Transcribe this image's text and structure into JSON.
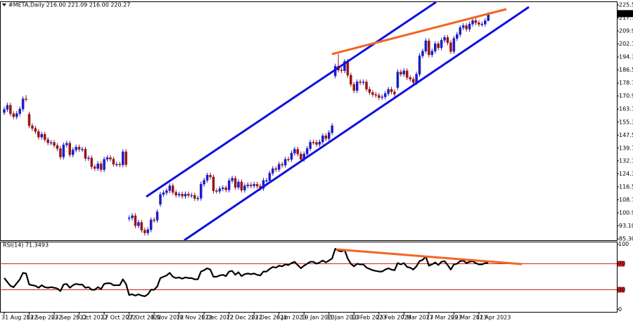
{
  "chart_data": [
    {
      "type": "candlestick",
      "title": "#META,Daily  216.00 221.09 216.00 220.27",
      "up_color": "#1c1cc8",
      "down_color": "#9a1515",
      "categories": [
        "31 Aug 2022",
        null,
        null,
        null,
        null,
        null,
        null,
        null,
        "13 Sep 2022",
        null,
        null,
        null,
        null,
        null,
        null,
        null,
        "23 Sep 2022",
        null,
        null,
        null,
        null,
        null,
        null,
        null,
        "5 Oct 2022",
        null,
        null,
        null,
        null,
        null,
        null,
        null,
        "17 Oct 2022",
        null,
        null,
        null,
        null,
        null,
        null,
        null,
        "27 Oct 2022",
        null,
        null,
        null,
        null,
        null,
        null,
        null,
        "8 Nov 2022",
        null,
        null,
        null,
        null,
        null,
        null,
        null,
        "18 Nov 2022",
        null,
        null,
        null,
        null,
        null,
        null,
        null,
        "1 Dec 2022",
        null,
        null,
        null,
        null,
        null,
        null,
        null,
        "12 Dec 2022",
        null,
        null,
        null,
        null,
        null,
        null,
        null,
        "23 Dec 2022",
        null,
        null,
        null,
        null,
        null,
        null,
        null,
        "6 Jan 2023",
        null,
        null,
        null,
        null,
        null,
        null,
        null,
        "19 Jan 2023",
        null,
        null,
        null,
        null,
        null,
        null,
        null,
        "31 Jan 2023",
        null,
        null,
        null,
        null,
        null,
        null,
        null,
        "10 Feb 2023",
        null,
        null,
        null,
        null,
        null,
        null,
        null,
        "23 Feb 2023",
        null,
        null,
        null,
        null,
        null,
        null,
        null,
        "7 Mar 2023",
        null,
        null,
        null,
        null,
        null,
        null,
        null,
        "17 Mar 2023",
        null,
        null,
        null,
        null,
        null,
        null,
        null,
        "29 Mar 2023",
        null,
        null,
        null,
        null,
        null,
        null,
        null,
        "11 Apr 2023",
        null,
        null,
        null
      ],
      "open": [
        161.0,
        162.9,
        165.4,
        160.3,
        158.5,
        160.4,
        163.1,
        169.2,
        160.0,
        153.1,
        151.5,
        149.6,
        146.3,
        148.0,
        144.8,
        142.9,
        143.1,
        141.3,
        139.4,
        134.4,
        141.6,
        142.6,
        135.7,
        138.6,
        140.3,
        139.0,
        139.1,
        133.5,
        133.8,
        128.5,
        127.5,
        130.3,
        126.8,
        133.0,
        134.0,
        133.1,
        130.0,
        130.0,
        129.7,
        137.5,
        97.5,
        97.9,
        99.2,
        93.2,
        95.2,
        90.5,
        88.9,
        90.8,
        96.7,
        96.5,
        106.0,
        111.9,
        113.0,
        114.2,
        117.1,
        113.2,
        111.5,
        112.1,
        110.9,
        112.2,
        111.4,
        111.4,
        109.5,
        109.7,
        118.1,
        120.4,
        123.5,
        122.4,
        114.1,
        113.9,
        115.3,
        115.9,
        114.7,
        120.2,
        121.6,
        116.2,
        119.4,
        114.5,
        117.1,
        117.7,
        117.1,
        118.0,
        116.9,
        115.6,
        120.3,
        120.3,
        124.7,
        127.4,
        126.9,
        130.0,
        129.5,
        133.0,
        132.9,
        136.7,
        139.0,
        136.2,
        133.0,
        136.2,
        139.4,
        143.2,
        143.1,
        141.9,
        143.4,
        147.1,
        145.4,
        149.0,
        183.0,
        188.8,
        186.5,
        186.1,
        191.6,
        183.4,
        177.9,
        174.2,
        179.4,
        179.0,
        179.3,
        175.0,
        173.0,
        171.8,
        171.3,
        170.0,
        170.4,
        172.4,
        174.9,
        173.4,
        176.0,
        185.3,
        184.0,
        186.0,
        182.0,
        181.0,
        179.0,
        184.0,
        195.0,
        197.8,
        204.0,
        195.6,
        197.8,
        202.2,
        199.8,
        204.3,
        206.0,
        202.8,
        197.6,
        205.4,
        207.8,
        211.9,
        213.1,
        211.0,
        214.0,
        216.1,
        214.8,
        213.9,
        214.0,
        216.0
      ],
      "high": [
        164.4,
        166.9,
        166.9,
        161.8,
        161.9,
        164.6,
        170.7,
        171.5,
        161.5,
        154.6,
        153.0,
        151.1,
        149.5,
        149.5,
        146.3,
        144.6,
        144.6,
        142.8,
        140.9,
        143.1,
        144.1,
        144.1,
        140.1,
        141.8,
        141.8,
        140.6,
        140.6,
        135.3,
        135.3,
        130.0,
        131.8,
        131.8,
        134.5,
        135.5,
        135.5,
        134.6,
        131.5,
        131.5,
        139.0,
        139.0,
        99.4,
        100.7,
        100.7,
        96.7,
        96.7,
        92.0,
        92.3,
        98.2,
        98.2,
        103.0,
        113.4,
        114.5,
        115.7,
        118.6,
        118.6,
        114.7,
        113.6,
        113.6,
        113.7,
        113.7,
        112.9,
        112.9,
        111.2,
        119.6,
        121.9,
        125.0,
        125.0,
        123.9,
        115.6,
        116.8,
        117.4,
        117.4,
        121.7,
        123.1,
        123.1,
        120.9,
        120.9,
        118.6,
        119.2,
        119.2,
        119.5,
        119.5,
        118.4,
        121.8,
        121.8,
        126.2,
        128.9,
        128.9,
        131.5,
        131.5,
        134.5,
        134.5,
        138.2,
        140.5,
        140.5,
        137.7,
        137.7,
        140.9,
        144.7,
        144.7,
        144.6,
        144.9,
        148.6,
        148.6,
        150.5,
        154.6,
        190.3,
        196.0,
        188.0,
        193.1,
        193.1,
        184.9,
        179.4,
        180.9,
        180.9,
        180.8,
        180.8,
        176.5,
        174.5,
        173.3,
        172.8,
        171.9,
        173.9,
        176.4,
        176.4,
        174.9,
        186.8,
        186.8,
        187.5,
        187.5,
        183.5,
        182.5,
        185.5,
        196.5,
        199.3,
        205.5,
        205.5,
        199.3,
        203.7,
        203.7,
        205.8,
        207.5,
        207.5,
        204.3,
        206.9,
        209.3,
        213.4,
        214.6,
        214.6,
        215.5,
        217.6,
        217.6,
        216.3,
        215.5,
        217.5,
        221.09
      ],
      "low": [
        159.5,
        161.4,
        158.8,
        157.0,
        157.0,
        158.9,
        161.6,
        167.5,
        151.6,
        150.0,
        148.1,
        144.8,
        144.8,
        143.3,
        141.4,
        141.4,
        139.8,
        137.9,
        132.9,
        132.9,
        140.1,
        134.2,
        134.2,
        137.1,
        137.5,
        137.5,
        132.0,
        132.0,
        127.0,
        126.0,
        126.0,
        125.3,
        125.3,
        131.5,
        131.6,
        128.5,
        128.5,
        128.2,
        128.2,
        128.3,
        96.0,
        96.4,
        91.7,
        91.7,
        89.0,
        87.4,
        87.4,
        89.3,
        95.0,
        95.0,
        104.5,
        110.4,
        111.5,
        112.7,
        111.7,
        110.0,
        110.0,
        109.4,
        109.4,
        109.9,
        109.9,
        108.0,
        108.0,
        108.2,
        116.6,
        118.9,
        120.9,
        112.6,
        112.4,
        112.4,
        113.8,
        113.2,
        113.2,
        118.7,
        114.7,
        114.7,
        113.0,
        113.0,
        115.6,
        115.6,
        115.6,
        115.4,
        114.1,
        114.1,
        118.8,
        118.8,
        123.2,
        125.4,
        125.4,
        128.0,
        128.0,
        131.4,
        131.4,
        135.2,
        134.7,
        131.5,
        131.5,
        134.7,
        137.9,
        141.6,
        140.4,
        140.4,
        141.9,
        143.9,
        143.9,
        147.5,
        181.5,
        185.0,
        184.6,
        184.6,
        181.9,
        176.4,
        172.7,
        172.7,
        177.5,
        177.5,
        173.5,
        171.5,
        170.3,
        169.8,
        168.5,
        168.5,
        168.9,
        170.9,
        171.9,
        170.5,
        174.5,
        182.5,
        182.5,
        180.5,
        179.5,
        177.5,
        177.5,
        182.5,
        193.5,
        196.3,
        194.1,
        194.1,
        196.3,
        198.3,
        198.3,
        202.8,
        201.3,
        196.1,
        196.1,
        203.9,
        206.3,
        210.4,
        209.5,
        209.5,
        212.5,
        213.3,
        212.4,
        212.4,
        212.5,
        216.0
      ],
      "close": [
        162.9,
        165.4,
        160.3,
        158.5,
        160.4,
        163.1,
        169.2,
        169.0,
        153.1,
        151.5,
        149.6,
        146.3,
        148.0,
        144.8,
        142.9,
        143.1,
        141.3,
        139.4,
        134.4,
        141.6,
        142.6,
        135.7,
        138.6,
        140.3,
        139.0,
        139.1,
        133.5,
        133.8,
        128.5,
        127.5,
        130.3,
        126.8,
        133.0,
        134.0,
        133.1,
        130.0,
        130.0,
        129.7,
        137.5,
        129.8,
        97.9,
        99.2,
        93.2,
        95.2,
        90.5,
        88.9,
        90.8,
        96.7,
        96.5,
        101.5,
        111.9,
        113.0,
        114.2,
        117.1,
        113.2,
        111.5,
        112.1,
        110.9,
        112.2,
        111.4,
        111.4,
        109.5,
        109.7,
        118.1,
        120.4,
        123.5,
        122.4,
        114.1,
        113.9,
        115.3,
        115.9,
        114.7,
        120.2,
        121.6,
        116.2,
        119.4,
        114.5,
        117.1,
        117.7,
        117.1,
        118.0,
        116.9,
        115.6,
        120.3,
        120.3,
        124.7,
        127.4,
        126.9,
        130.0,
        129.5,
        133.0,
        132.9,
        136.7,
        139.0,
        136.2,
        133.0,
        136.2,
        139.4,
        143.2,
        143.1,
        141.9,
        143.4,
        147.1,
        145.4,
        149.0,
        153.1,
        188.8,
        186.5,
        186.1,
        191.6,
        183.4,
        177.9,
        174.2,
        179.4,
        179.0,
        179.3,
        175.0,
        173.0,
        171.8,
        171.3,
        170.0,
        170.4,
        172.4,
        174.9,
        173.4,
        172.0,
        185.3,
        184.0,
        186.0,
        182.0,
        181.0,
        179.0,
        184.0,
        195.0,
        197.8,
        204.0,
        195.6,
        197.8,
        202.2,
        199.8,
        204.3,
        206.0,
        202.8,
        197.6,
        205.4,
        207.8,
        211.9,
        213.1,
        211.0,
        214.0,
        216.1,
        214.8,
        213.9,
        214.0,
        216.0,
        220.27
      ],
      "ylim": [
        84.5,
        227.6
      ],
      "yticks": [
        {
          "value": 225.5,
          "label": "225.50"
        },
        {
          "value": 217.7,
          "label": "217.70"
        },
        {
          "value": 209.9,
          "label": "209.90"
        },
        {
          "value": 202.1,
          "label": "202.10"
        },
        {
          "value": 194.3,
          "label": "194.30"
        },
        {
          "value": 186.5,
          "label": "186.50"
        },
        {
          "value": 178.7,
          "label": "178.70"
        },
        {
          "value": 170.9,
          "label": "170.90"
        },
        {
          "value": 163.1,
          "label": "163.10"
        },
        {
          "value": 155.3,
          "label": "155.30"
        },
        {
          "value": 147.5,
          "label": "147.50"
        },
        {
          "value": 139.7,
          "label": "139.70"
        },
        {
          "value": 132.1,
          "label": "132.10"
        },
        {
          "value": 124.3,
          "label": "124.30"
        },
        {
          "value": 116.5,
          "label": "116.50"
        },
        {
          "value": 108.7,
          "label": "108.70"
        },
        {
          "value": 100.9,
          "label": "100.90"
        },
        {
          "value": 93.1,
          "label": "93.10"
        },
        {
          "value": 85.3,
          "label": "85.30"
        }
      ]
    },
    {
      "type": "line",
      "title": "RSI(14) 71.3493",
      "color": "#000000",
      "level_color": "#d21e1e",
      "values": [
        48,
        42,
        36,
        34,
        40,
        46,
        56,
        55,
        38,
        37,
        36,
        33,
        37,
        34,
        33,
        34,
        33,
        32,
        28,
        38,
        39,
        33,
        37,
        39,
        38,
        38,
        33,
        34,
        30,
        30,
        34,
        31,
        39,
        40,
        40,
        37,
        37,
        37,
        46,
        39,
        22,
        23,
        21,
        23,
        21,
        20,
        23,
        30,
        30,
        35,
        48,
        50,
        52,
        56,
        50,
        48,
        49,
        47,
        49,
        48,
        48,
        46,
        46,
        58,
        60,
        63,
        61,
        50,
        50,
        52,
        53,
        51,
        58,
        59,
        53,
        57,
        51,
        54,
        55,
        54,
        55,
        53,
        52,
        58,
        58,
        62,
        65,
        64,
        67,
        66,
        69,
        68,
        71,
        73,
        68,
        63,
        67,
        70,
        73,
        73,
        70,
        72,
        75,
        72,
        75,
        78,
        93,
        90,
        89,
        91,
        78,
        70,
        66,
        70,
        69,
        69,
        64,
        62,
        60,
        59,
        58,
        58,
        61,
        63,
        61,
        60,
        71,
        69,
        71,
        65,
        64,
        61,
        66,
        74,
        76,
        81,
        67,
        69,
        72,
        68,
        73,
        74,
        68,
        61,
        69,
        70,
        74,
        75,
        71,
        73,
        74,
        71,
        69,
        69,
        71,
        71.3493
      ],
      "ylim": [
        -4,
        104
      ],
      "yticks": [
        0,
        30,
        70,
        100
      ],
      "levels": [
        30,
        70
      ]
    }
  ]
}
